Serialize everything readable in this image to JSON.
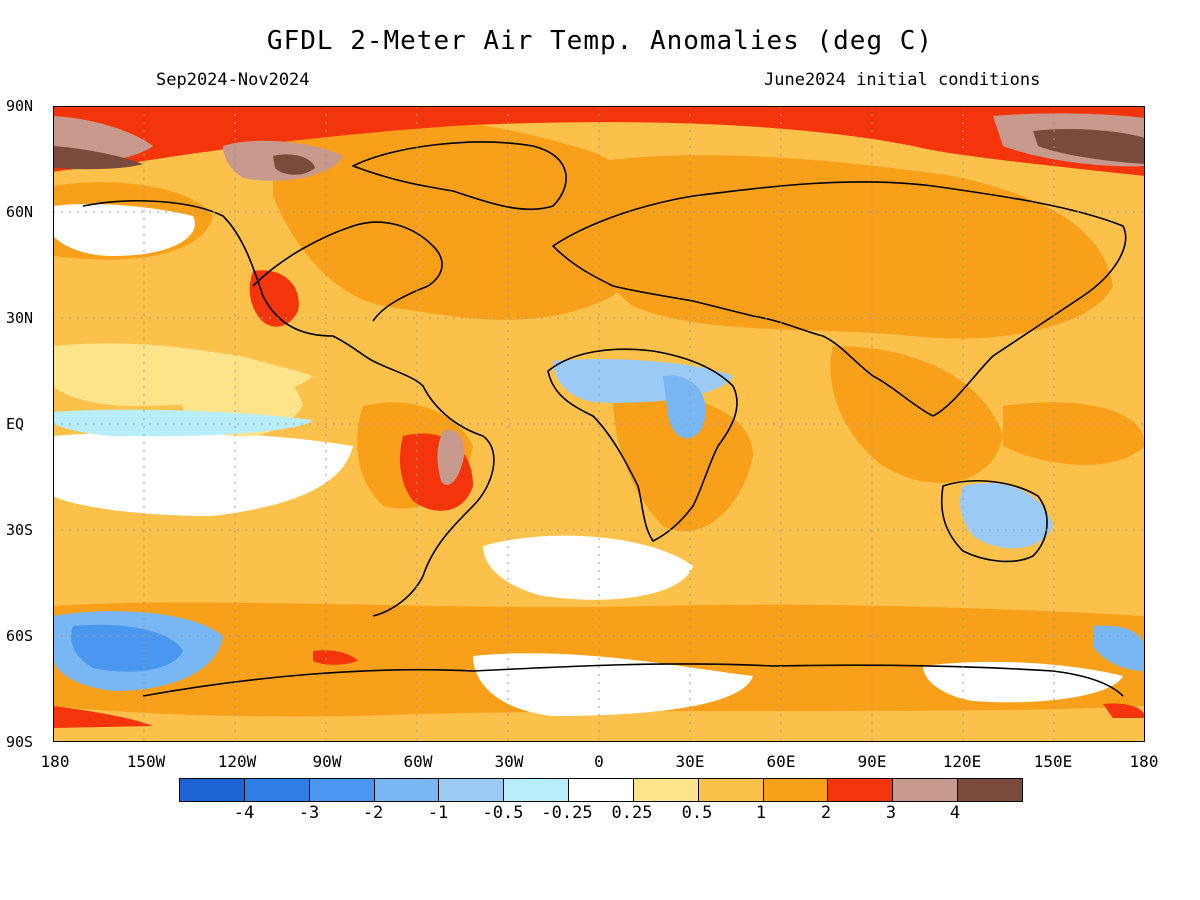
{
  "title": "GFDL 2-Meter Air Temp. Anomalies (deg C)",
  "subtitle_left": "Sep2024-Nov2024",
  "subtitle_right": "June2024 initial conditions",
  "lat_labels": [
    "90N",
    "60N",
    "30N",
    "EQ",
    "30S",
    "60S",
    "90S"
  ],
  "lon_labels": [
    "180",
    "150W",
    "120W",
    "90W",
    "60W",
    "30W",
    "0",
    "30E",
    "60E",
    "90E",
    "120E",
    "150E",
    "180"
  ],
  "colorbar": {
    "colors": [
      "#1d63d2",
      "#2f7ee6",
      "#4a97ef",
      "#79b6f4",
      "#9ccaf6",
      "#b8eefa",
      "#ffffff",
      "#fde38a",
      "#fcc14a",
      "#f9a01b",
      "#f4350b",
      "#c79a8d",
      "#7a4a3c"
    ],
    "labels": [
      "-4",
      "-3",
      "-2",
      "-1",
      "-0.5",
      "-0.25",
      "0.25",
      "0.5",
      "1",
      "2",
      "3",
      "4"
    ]
  },
  "colors": {
    "base": "#fcc14a",
    "warm": "#f9a01b",
    "hot": "#f4350b",
    "very_hot": "#c79a8d",
    "extreme": "#7a4a3c",
    "neutral": "#ffffff",
    "light_warm": "#fde38a",
    "cool": "#b8eefa",
    "colder": "#79b6f4",
    "coldest": "#4a97ef"
  }
}
